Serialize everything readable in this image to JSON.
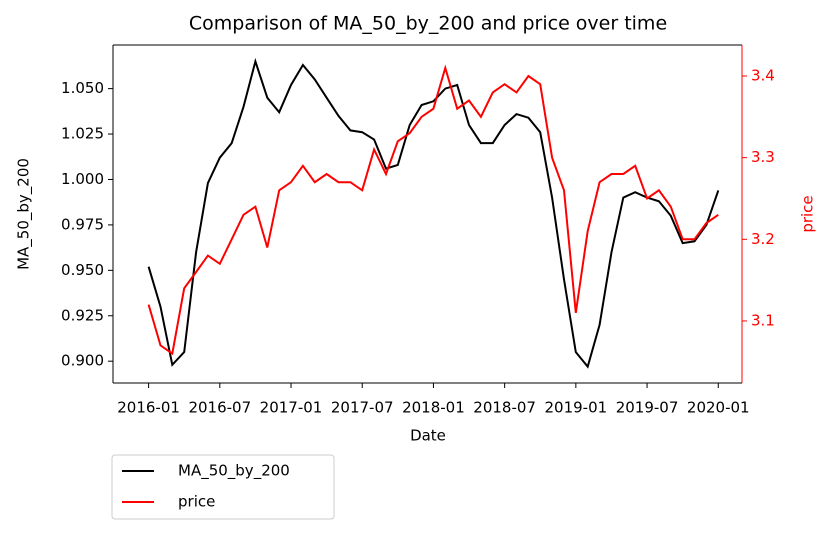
{
  "chart_data": {
    "type": "line",
    "title": "Comparison of MA_50_by_200 and price over time",
    "xlabel": "Date",
    "ylabel": "MA_50_by_200",
    "y2label": "price",
    "y2color": "#ff0000",
    "x": [
      "2016-01",
      "2016-02",
      "2016-03",
      "2016-04",
      "2016-05",
      "2016-06",
      "2016-07",
      "2016-08",
      "2016-09",
      "2016-10",
      "2016-11",
      "2016-12",
      "2017-01",
      "2017-02",
      "2017-03",
      "2017-04",
      "2017-05",
      "2017-06",
      "2017-07",
      "2017-08",
      "2017-09",
      "2017-10",
      "2017-11",
      "2017-12",
      "2018-01",
      "2018-02",
      "2018-03",
      "2018-04",
      "2018-05",
      "2018-06",
      "2018-07",
      "2018-08",
      "2018-09",
      "2018-10",
      "2018-11",
      "2018-12",
      "2019-01",
      "2019-02",
      "2019-03",
      "2019-04",
      "2019-05",
      "2019-06",
      "2019-07",
      "2019-08",
      "2019-09",
      "2019-10",
      "2019-11",
      "2019-12",
      "2020-01"
    ],
    "series": [
      {
        "name": "MA_50_by_200",
        "color": "#000000",
        "values": [
          0.952,
          0.93,
          0.898,
          0.905,
          0.96,
          0.998,
          1.012,
          1.02,
          1.04,
          1.065,
          1.045,
          1.037,
          1.052,
          1.063,
          1.055,
          1.045,
          1.035,
          1.027,
          1.026,
          1.022,
          1.006,
          1.008,
          1.03,
          1.041,
          1.043,
          1.05,
          1.052,
          1.03,
          1.02,
          1.02,
          1.03,
          1.036,
          1.034,
          1.026,
          0.99,
          0.945,
          0.905,
          0.897,
          0.92,
          0.96,
          0.99,
          0.993,
          0.99,
          0.988,
          0.98,
          0.965,
          0.966,
          0.975,
          0.994
        ]
      },
      {
        "name": "price",
        "color": "#ff0000",
        "axis": "y2",
        "values": [
          3.12,
          3.07,
          3.06,
          3.14,
          3.16,
          3.18,
          3.17,
          3.2,
          3.23,
          3.24,
          3.19,
          3.26,
          3.27,
          3.29,
          3.27,
          3.28,
          3.27,
          3.27,
          3.26,
          3.31,
          3.28,
          3.32,
          3.33,
          3.35,
          3.36,
          3.41,
          3.36,
          3.37,
          3.35,
          3.38,
          3.39,
          3.38,
          3.4,
          3.39,
          3.3,
          3.26,
          3.11,
          3.21,
          3.27,
          3.28,
          3.28,
          3.29,
          3.25,
          3.26,
          3.24,
          3.2,
          3.2,
          3.22,
          3.23
        ]
      }
    ],
    "xlim": [
      "2015-10",
      "2020-03"
    ],
    "xticks": [
      "2016-01",
      "2016-07",
      "2017-01",
      "2017-07",
      "2018-01",
      "2018-07",
      "2019-01",
      "2019-07",
      "2020-01"
    ],
    "ylim": [
      0.888,
      1.074
    ],
    "yticks": [
      {
        "value": 0.9,
        "label": "0.900"
      },
      {
        "value": 0.925,
        "label": "0.925"
      },
      {
        "value": 0.95,
        "label": "0.950"
      },
      {
        "value": 0.975,
        "label": "0.975"
      },
      {
        "value": 1.0,
        "label": "1.000"
      },
      {
        "value": 1.025,
        "label": "1.025"
      },
      {
        "value": 1.05,
        "label": "1.050"
      }
    ],
    "y2lim": [
      3.024,
      3.438
    ],
    "y2ticks": [
      3.1,
      3.2,
      3.3,
      3.4
    ],
    "legend": "below-left"
  }
}
